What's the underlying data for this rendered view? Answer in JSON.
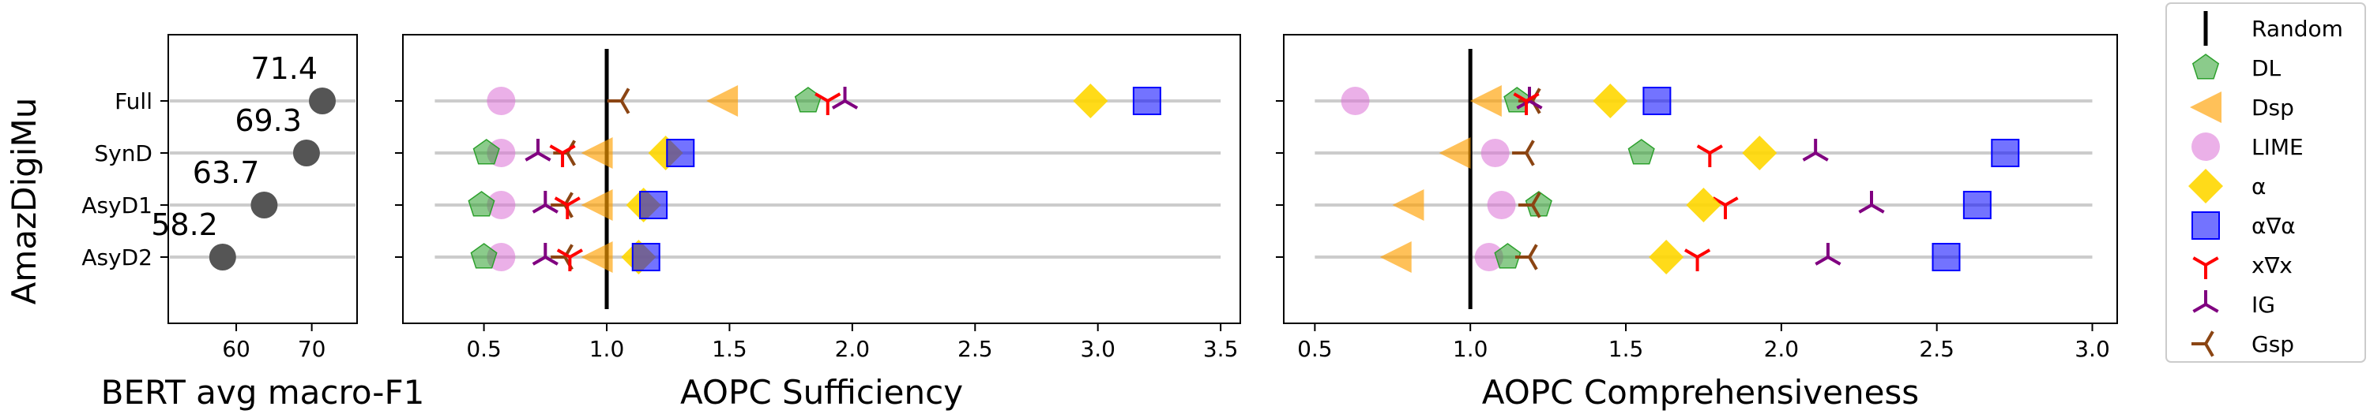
{
  "figure": {
    "row_label": "AmazDigiMu",
    "categories": [
      "Full",
      "SynD",
      "AsyD1",
      "AsyD2"
    ]
  },
  "legend": {
    "entries": [
      {
        "label": "Random",
        "marker": "vline",
        "color": "#000000"
      },
      {
        "label": "DL",
        "marker": "pentagon",
        "color": "#2ca02c"
      },
      {
        "label": "Dsp",
        "marker": "triangle-left",
        "color": "#ff9f00"
      },
      {
        "label": "LIME",
        "marker": "circle",
        "color": "#da70d6"
      },
      {
        "label": "α",
        "marker": "diamond",
        "color": "#ffd700"
      },
      {
        "label": "α∇α",
        "marker": "square",
        "color": "#0000ff"
      },
      {
        "label": "x∇x",
        "marker": "tri-down",
        "color": "#ff0000"
      },
      {
        "label": "IG",
        "marker": "tri-up",
        "color": "#800080"
      },
      {
        "label": "Gsp",
        "marker": "tri-left",
        "color": "#8b4513"
      }
    ]
  },
  "chart_data": [
    {
      "type": "scatter",
      "xlabel": "BERT avg macro-F1",
      "ylabel": "AmazDigiMu",
      "categories": [
        "Full",
        "SynD",
        "AsyD1",
        "AsyD2"
      ],
      "values": [
        71.4,
        69.3,
        63.7,
        58.2
      ],
      "value_labels": [
        "71.4",
        "69.3",
        "63.7",
        "58.2"
      ],
      "xlim": [
        51,
        76
      ],
      "xticks": [
        60,
        70
      ],
      "grid": "horizontal lines per category",
      "color": "#555555"
    },
    {
      "type": "scatter",
      "xlabel": "AOPC Sufficiency",
      "categories": [
        "Full",
        "SynD",
        "AsyD1",
        "AsyD2"
      ],
      "xlim": [
        0.17,
        3.58
      ],
      "xticks": [
        0.5,
        1.0,
        1.5,
        2.0,
        2.5,
        3.0,
        3.5
      ],
      "random_baseline": 1.0,
      "grid_span": [
        0.3,
        3.5
      ],
      "series": [
        {
          "name": "DL",
          "values": [
            1.82,
            0.51,
            0.49,
            0.5
          ]
        },
        {
          "name": "Dsp",
          "values": [
            1.47,
            0.96,
            0.96,
            0.96
          ]
        },
        {
          "name": "LIME",
          "values": [
            0.57,
            0.57,
            0.57,
            0.57
          ]
        },
        {
          "name": "α",
          "values": [
            2.97,
            1.24,
            1.15,
            1.13
          ]
        },
        {
          "name": "α∇α",
          "values": [
            3.2,
            1.3,
            1.19,
            1.16
          ]
        },
        {
          "name": "x∇x",
          "values": [
            1.9,
            0.82,
            0.84,
            0.85
          ]
        },
        {
          "name": "IG",
          "values": [
            1.97,
            0.72,
            0.75,
            0.75
          ]
        },
        {
          "name": "Gsp",
          "values": [
            1.06,
            0.84,
            0.83,
            0.83
          ]
        }
      ]
    },
    {
      "type": "scatter",
      "xlabel": "AOPC Comprehensiveness",
      "categories": [
        "Full",
        "SynD",
        "AsyD1",
        "AsyD2"
      ],
      "xlim": [
        0.4,
        3.08
      ],
      "xticks": [
        0.5,
        1.0,
        1.5,
        2.0,
        2.5,
        3.0
      ],
      "random_baseline": 1.0,
      "grid_span": [
        0.5,
        3.0
      ],
      "series": [
        {
          "name": "DL",
          "values": [
            1.15,
            1.55,
            1.22,
            1.12
          ]
        },
        {
          "name": "Dsp",
          "values": [
            1.05,
            0.95,
            0.8,
            0.76
          ]
        },
        {
          "name": "LIME",
          "values": [
            0.63,
            1.08,
            1.1,
            1.06
          ]
        },
        {
          "name": "α",
          "values": [
            1.45,
            1.93,
            1.75,
            1.63
          ]
        },
        {
          "name": "α∇α",
          "values": [
            1.6,
            2.72,
            2.63,
            2.53
          ]
        },
        {
          "name": "x∇x",
          "values": [
            1.18,
            1.77,
            1.82,
            1.73
          ]
        },
        {
          "name": "IG",
          "values": [
            1.19,
            2.11,
            2.29,
            2.15
          ]
        },
        {
          "name": "Gsp",
          "values": [
            1.2,
            1.18,
            1.2,
            1.19
          ]
        }
      ]
    }
  ]
}
